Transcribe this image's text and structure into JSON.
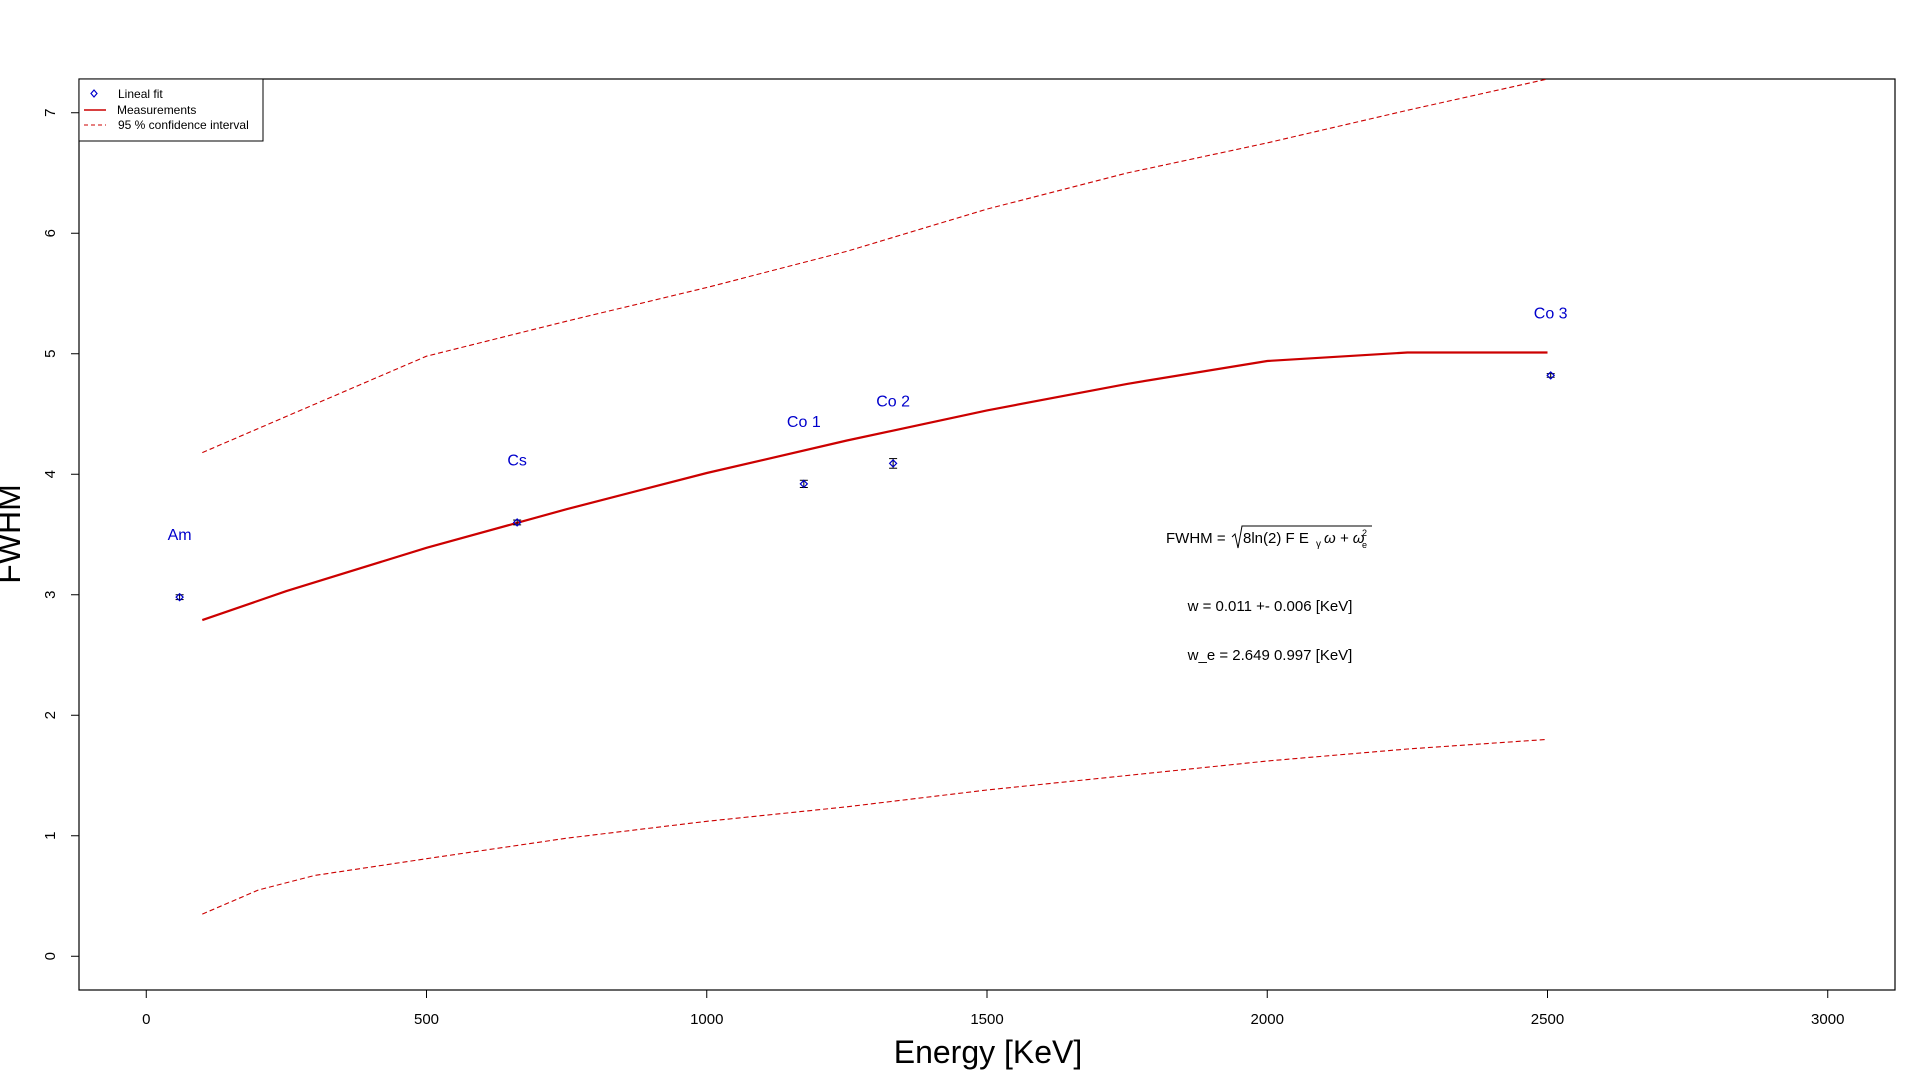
{
  "chart_data": {
    "type": "scatter",
    "title": "",
    "xlabel": "Energy [KeV]",
    "ylabel": "FWHM",
    "xlim": [
      -120,
      3120
    ],
    "ylim": [
      -0.28,
      7.28
    ],
    "xticks": [
      0,
      500,
      1000,
      1500,
      2000,
      2500,
      3000
    ],
    "yticks": [
      0,
      1,
      2,
      3,
      4,
      5,
      6,
      7
    ],
    "grid": false,
    "legend": {
      "placement": "top-left",
      "entries": [
        {
          "label": "Lineal fit",
          "symbol": "diamond",
          "color": "#0000cc"
        },
        {
          "label": "Measurements",
          "symbol": "line",
          "color": "#cc0000"
        },
        {
          "label": "95 % confidence interval",
          "symbol": "dashed-line",
          "color": "#cc0000"
        }
      ]
    },
    "measurements": [
      {
        "label": "Am",
        "x": 59.5,
        "y": 2.98,
        "err": 0.02
      },
      {
        "label": "Cs",
        "x": 661.7,
        "y": 3.6,
        "err": 0.02
      },
      {
        "label": "Co 1",
        "x": 1173.2,
        "y": 3.92,
        "err": 0.03
      },
      {
        "label": "Co 2",
        "x": 1332.5,
        "y": 4.09,
        "err": 0.04
      },
      {
        "label": "Co 3",
        "x": 2505.7,
        "y": 4.82,
        "err": 0.015
      }
    ],
    "fit_curve": {
      "x": [
        100,
        250,
        500,
        750,
        1000,
        1250,
        1500,
        1750,
        2000,
        2250,
        2500
      ],
      "y": [
        2.79,
        3.03,
        3.39,
        3.71,
        4.01,
        4.28,
        4.53,
        4.75,
        4.94,
        5.01,
        5.01
      ]
    },
    "ci_upper": {
      "x": [
        100,
        250,
        500,
        750,
        1000,
        1250,
        1500,
        1750,
        2000,
        2250,
        2500
      ],
      "y": [
        4.18,
        4.48,
        4.98,
        5.27,
        5.55,
        5.85,
        6.2,
        6.5,
        6.75,
        7.02,
        7.28
      ]
    },
    "ci_lower": {
      "x": [
        100,
        200,
        300,
        500,
        750,
        1000,
        1250,
        1500,
        1750,
        2000,
        2250,
        2500
      ],
      "y": [
        0.35,
        0.55,
        0.67,
        0.81,
        0.98,
        1.12,
        1.24,
        1.38,
        1.5,
        1.62,
        1.72,
        1.8
      ]
    },
    "annotations": {
      "formula_lhs": "FWHM =",
      "formula_radicand": "8ln(2) F E",
      "formula_sub_gamma": "γ",
      "formula_omega": "ω + ω",
      "formula_sup": "2",
      "formula_sub_e": "e",
      "w_text": "w = 0.011 +- 0.006 [KeV]",
      "we_text": "w_e = 2.649 0.997 [KeV]"
    },
    "colors": {
      "fit": "#cc0000",
      "points": "#0000cc",
      "labels": "#0000cc",
      "errorbars": "#000000"
    }
  }
}
